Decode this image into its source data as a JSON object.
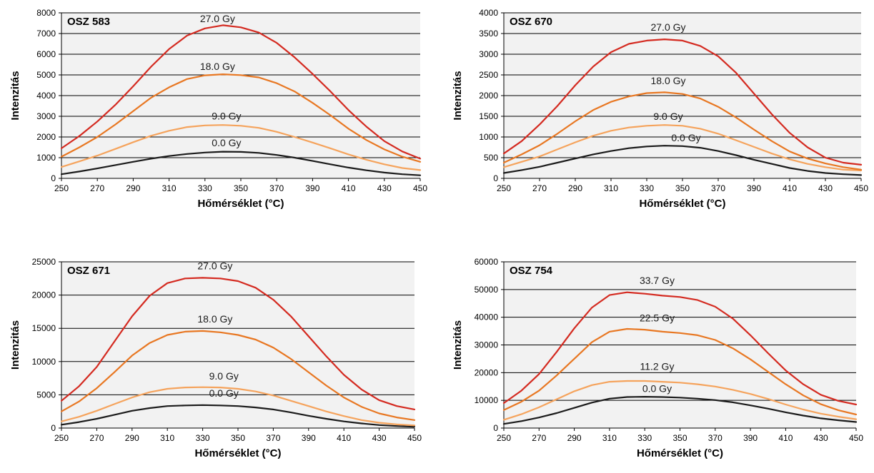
{
  "colors": {
    "plot_bg": "#f2f2f2",
    "grid": "#000000",
    "series_palette": [
      "#1a1a1a",
      "#f5a35c",
      "#e87722",
      "#d42a20"
    ]
  },
  "chart_data": [
    {
      "type": "line",
      "title": "OSZ 583",
      "xlabel": "Hőmérséklet (°C)",
      "ylabel": "Intenzitás",
      "xlim": [
        250,
        450
      ],
      "ylim": [
        0,
        8000
      ],
      "xticks": [
        "250",
        "270",
        "290",
        "310",
        "330",
        "350",
        "370",
        "390",
        "410",
        "430",
        "450"
      ],
      "yticks": [
        "0",
        "1000",
        "2000",
        "3000",
        "4000",
        "5000",
        "6000",
        "7000",
        "8000"
      ],
      "grid": true,
      "x": [
        250,
        260,
        270,
        280,
        290,
        300,
        310,
        320,
        330,
        340,
        350,
        360,
        370,
        380,
        390,
        400,
        410,
        420,
        430,
        440,
        450
      ],
      "series": [
        {
          "name": "0.0 Gy",
          "color": "#1a1a1a",
          "values": [
            200,
            330,
            480,
            640,
            800,
            950,
            1080,
            1180,
            1250,
            1290,
            1280,
            1230,
            1130,
            1000,
            840,
            680,
            520,
            390,
            280,
            200,
            150
          ]
        },
        {
          "name": "9.0 Gy",
          "color": "#f5a35c",
          "values": [
            550,
            820,
            1100,
            1420,
            1750,
            2060,
            2300,
            2480,
            2560,
            2580,
            2540,
            2440,
            2250,
            2000,
            1730,
            1450,
            1160,
            900,
            680,
            500,
            400
          ]
        },
        {
          "name": "18.0 Gy",
          "color": "#e87722",
          "values": [
            1050,
            1500,
            2000,
            2600,
            3250,
            3900,
            4400,
            4800,
            4980,
            5030,
            4990,
            4880,
            4600,
            4200,
            3650,
            3050,
            2400,
            1850,
            1400,
            1050,
            800
          ]
        },
        {
          "name": "27.0 Gy",
          "color": "#d42a20",
          "values": [
            1450,
            2050,
            2750,
            3550,
            4450,
            5400,
            6250,
            6900,
            7250,
            7400,
            7300,
            7050,
            6550,
            5850,
            5050,
            4200,
            3300,
            2500,
            1800,
            1300,
            950
          ]
        }
      ],
      "annotations": [
        {
          "text": "0.0 Gy",
          "x": 342,
          "y": 1550
        },
        {
          "text": "9.0 Gy",
          "x": 342,
          "y": 2850
        },
        {
          "text": "18.0 Gy",
          "x": 337,
          "y": 5250
        },
        {
          "text": "27.0 Gy",
          "x": 337,
          "y": 7550
        }
      ]
    },
    {
      "type": "line",
      "title": "OSZ 670",
      "xlabel": "Hőmérséklet (°C)",
      "ylabel": "Intenzitás",
      "xlim": [
        250,
        450
      ],
      "ylim": [
        0,
        4000
      ],
      "xticks": [
        "250",
        "270",
        "290",
        "310",
        "330",
        "350",
        "370",
        "390",
        "410",
        "430",
        "450"
      ],
      "yticks": [
        "0",
        "500",
        "1000",
        "1500",
        "2000",
        "2500",
        "3000",
        "3500",
        "4000"
      ],
      "grid": true,
      "x": [
        250,
        260,
        270,
        280,
        290,
        300,
        310,
        320,
        330,
        340,
        350,
        360,
        370,
        380,
        390,
        400,
        410,
        420,
        430,
        440,
        450
      ],
      "series": [
        {
          "name": "0.0 Gy",
          "color": "#1a1a1a",
          "values": [
            130,
            200,
            280,
            380,
            480,
            580,
            660,
            730,
            770,
            790,
            780,
            740,
            660,
            560,
            450,
            350,
            250,
            180,
            130,
            100,
            80
          ]
        },
        {
          "name": "9.0 Gy",
          "color": "#f5a35c",
          "values": [
            270,
            400,
            530,
            700,
            870,
            1030,
            1150,
            1230,
            1270,
            1290,
            1270,
            1200,
            1080,
            920,
            760,
            600,
            460,
            350,
            270,
            210,
            190
          ]
        },
        {
          "name": "18.0 Gy",
          "color": "#e87722",
          "values": [
            380,
            580,
            800,
            1080,
            1380,
            1650,
            1850,
            1980,
            2060,
            2080,
            2040,
            1930,
            1730,
            1470,
            1180,
            900,
            650,
            480,
            360,
            270,
            210
          ]
        },
        {
          "name": "27.0 Gy",
          "color": "#d42a20",
          "values": [
            600,
            900,
            1300,
            1750,
            2250,
            2700,
            3050,
            3250,
            3330,
            3360,
            3330,
            3200,
            2950,
            2550,
            2050,
            1550,
            1100,
            750,
            500,
            380,
            330
          ]
        }
      ],
      "annotations": [
        {
          "text": "0.0 Gy",
          "x": 352,
          "y": 900
        },
        {
          "text": "9.0 Gy",
          "x": 342,
          "y": 1410
        },
        {
          "text": "18.0 Gy",
          "x": 342,
          "y": 2280
        },
        {
          "text": "27.0 Gy",
          "x": 342,
          "y": 3570
        }
      ]
    },
    {
      "type": "line",
      "title": "OSZ 671",
      "xlabel": "Hőmérséklet (°C)",
      "ylabel": "Intenzitás",
      "xlim": [
        250,
        450
      ],
      "ylim": [
        0,
        25000
      ],
      "xticks": [
        "250",
        "270",
        "290",
        "310",
        "330",
        "350",
        "370",
        "390",
        "410",
        "430",
        "450"
      ],
      "yticks": [
        "0",
        "5000",
        "10000",
        "15000",
        "20000",
        "25000"
      ],
      "grid": true,
      "x": [
        250,
        260,
        270,
        280,
        290,
        300,
        310,
        320,
        330,
        340,
        350,
        360,
        370,
        380,
        390,
        400,
        410,
        420,
        430,
        440,
        450
      ],
      "series": [
        {
          "name": "0.0 Gy",
          "color": "#1a1a1a",
          "values": [
            500,
            900,
            1400,
            2000,
            2600,
            3000,
            3300,
            3400,
            3450,
            3400,
            3300,
            3100,
            2800,
            2350,
            1850,
            1400,
            1000,
            700,
            450,
            300,
            200
          ]
        },
        {
          "name": "9.0 Gy",
          "color": "#f5a35c",
          "values": [
            1000,
            1700,
            2600,
            3600,
            4600,
            5400,
            5900,
            6100,
            6150,
            6100,
            5900,
            5500,
            4900,
            4100,
            3300,
            2500,
            1800,
            1200,
            800,
            550,
            400
          ]
        },
        {
          "name": "18.0 Gy",
          "color": "#e87722",
          "values": [
            2500,
            4000,
            6000,
            8400,
            10900,
            12800,
            14000,
            14500,
            14600,
            14400,
            14000,
            13300,
            12100,
            10400,
            8400,
            6400,
            4600,
            3200,
            2200,
            1600,
            1200
          ]
        },
        {
          "name": "27.0 Gy",
          "color": "#d42a20",
          "values": [
            4100,
            6300,
            9200,
            13000,
            16800,
            19900,
            21800,
            22500,
            22600,
            22500,
            22100,
            21100,
            19300,
            16800,
            13800,
            10800,
            8000,
            5800,
            4200,
            3300,
            2800
          ]
        }
      ],
      "annotations": [
        {
          "text": "0.0 Gy",
          "x": 342,
          "y": 4700
        },
        {
          "text": "9.0 Gy",
          "x": 342,
          "y": 7300
        },
        {
          "text": "18.0 Gy",
          "x": 337,
          "y": 15900
        },
        {
          "text": "27.0 Gy",
          "x": 337,
          "y": 23900
        }
      ]
    },
    {
      "type": "line",
      "title": "OSZ 754",
      "xlabel": "Hőmérséklet (°C)",
      "ylabel": "Intenzitás",
      "xlim": [
        250,
        450
      ],
      "ylim": [
        0,
        60000
      ],
      "xticks": [
        "250",
        "270",
        "290",
        "310",
        "330",
        "350",
        "370",
        "390",
        "410",
        "430",
        "450"
      ],
      "yticks": [
        "0",
        "10000",
        "20000",
        "30000",
        "40000",
        "50000",
        "60000"
      ],
      "grid": true,
      "x": [
        250,
        260,
        270,
        280,
        290,
        300,
        310,
        320,
        330,
        340,
        350,
        360,
        370,
        380,
        390,
        400,
        410,
        420,
        430,
        440,
        450
      ],
      "series": [
        {
          "name": "0.0 Gy",
          "color": "#1a1a1a",
          "values": [
            1500,
            2500,
            3800,
            5400,
            7300,
            9200,
            10600,
            11200,
            11300,
            11200,
            11000,
            10600,
            10100,
            9300,
            8200,
            7000,
            5700,
            4500,
            3500,
            2800,
            2200
          ]
        },
        {
          "name": "11.2 Gy",
          "color": "#f5a35c",
          "values": [
            3000,
            5000,
            7500,
            10400,
            13300,
            15500,
            16700,
            17000,
            17000,
            16700,
            16400,
            15800,
            15000,
            13800,
            12300,
            10500,
            8500,
            6700,
            5200,
            4100,
            3200
          ]
        },
        {
          "name": "22.5 Gy",
          "color": "#e87722",
          "values": [
            6500,
            9500,
            13500,
            19000,
            25000,
            31000,
            34800,
            35800,
            35500,
            34800,
            34300,
            33500,
            31800,
            28800,
            24800,
            20300,
            15800,
            11800,
            8600,
            6400,
            4900
          ]
        },
        {
          "name": "33.7 Gy",
          "color": "#d42a20",
          "values": [
            9000,
            13500,
            19500,
            27500,
            36000,
            43500,
            48000,
            49000,
            48500,
            47800,
            47300,
            46200,
            43800,
            39500,
            33500,
            27000,
            20800,
            15800,
            12000,
            9800,
            8500
          ]
        }
      ],
      "annotations": [
        {
          "text": "0.0 Gy",
          "x": 337,
          "y": 13000
        },
        {
          "text": "11.2 Gy",
          "x": 337,
          "y": 21000
        },
        {
          "text": "22.5 Gy",
          "x": 337,
          "y": 38500
        },
        {
          "text": "33.7 Gy",
          "x": 337,
          "y": 52000
        }
      ]
    }
  ]
}
